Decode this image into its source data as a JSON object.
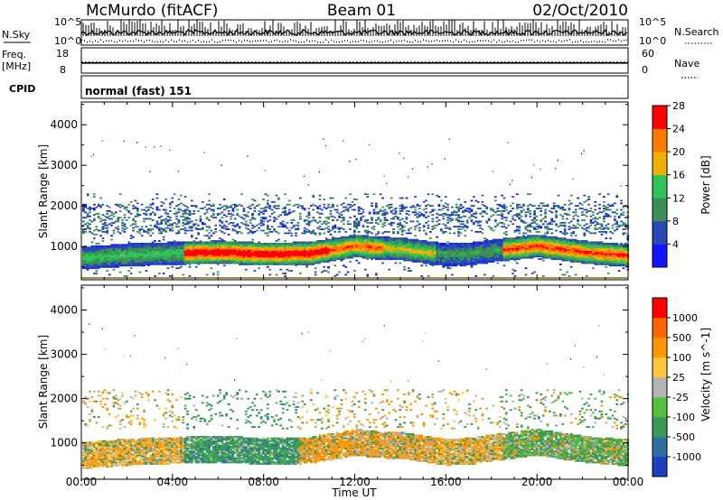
{
  "header": {
    "station": "McMurdo (fitACF)",
    "beam": "Beam 01",
    "date": "02/Oct/2010"
  },
  "noise_panel": {
    "left_label": "N.Sky",
    "right_label": "N.Search",
    "left_ticks": [
      "10^5",
      "10^0"
    ],
    "right_ticks": [
      "10^5",
      "10^0"
    ]
  },
  "freq_panel": {
    "left_label_top": "Freq.",
    "left_label_bottom": "[MHz]",
    "right_label": "Nave",
    "left_ticks": [
      "18",
      "8"
    ],
    "right_ticks": [
      "60",
      "0"
    ],
    "freq_level_mhz": 12,
    "nave_level": 26
  },
  "cpid_panel": {
    "label": "CPID",
    "mode": "normal (fast) 151"
  },
  "chart_data": [
    {
      "type": "heatmap",
      "quantity": "Power",
      "ylabel": "Slant Range [km]",
      "xlabel": "Time UT",
      "x_ticks": [
        "00:00",
        "04:00",
        "08:00",
        "12:00",
        "16:00",
        "20:00",
        "00:00"
      ],
      "y_ticks": [
        "1000",
        "2000",
        "3000",
        "4000"
      ],
      "ylim": [
        180,
        4560
      ],
      "colorbar": {
        "label": "Power [dB]",
        "tick_labels": [
          "4",
          "8",
          "12",
          "16",
          "20",
          "24",
          "28"
        ],
        "colors": [
          "#1414ff",
          "#2848b8",
          "#3a8f55",
          "#2ec45a",
          "#f0b000",
          "#ff7a00",
          "#ff0000"
        ]
      },
      "main_echo_band": {
        "center_km_by_hour": [
          [
            0,
            700
          ],
          [
            2,
            780
          ],
          [
            4,
            820
          ],
          [
            6,
            850
          ],
          [
            8,
            800
          ],
          [
            10,
            820
          ],
          [
            12,
            1000
          ],
          [
            13,
            950
          ],
          [
            14,
            930
          ],
          [
            16,
            780
          ],
          [
            17,
            800
          ],
          [
            18,
            880
          ],
          [
            20,
            1000
          ],
          [
            22,
            850
          ],
          [
            24,
            760
          ]
        ],
        "peak_power_db": 28
      }
    },
    {
      "type": "heatmap",
      "quantity": "Velocity",
      "ylabel": "Slant Range [km]",
      "xlabel": "Time UT",
      "x_ticks": [
        "00:00",
        "04:00",
        "08:00",
        "12:00",
        "16:00",
        "20:00",
        "00:00"
      ],
      "y_ticks": [
        "1000",
        "2000",
        "3000",
        "4000"
      ],
      "ylim": [
        180,
        4560
      ],
      "colorbar": {
        "label": "Velocity [m s^-1]",
        "tick_labels": [
          "1000",
          "500",
          "100",
          "25",
          "-25",
          "-100",
          "-500",
          "-1000"
        ],
        "colors": [
          "#1a3fbf",
          "#2f6fa0",
          "#3a9a5a",
          "#55c040",
          "#b4b4b4",
          "#ffc83c",
          "#ff9600",
          "#ff6400",
          "#ff0000"
        ]
      }
    }
  ],
  "time_axis_label": "Time UT",
  "colors": {
    "frame": "#000000",
    "ground_scatter_line": "#8b6914"
  }
}
